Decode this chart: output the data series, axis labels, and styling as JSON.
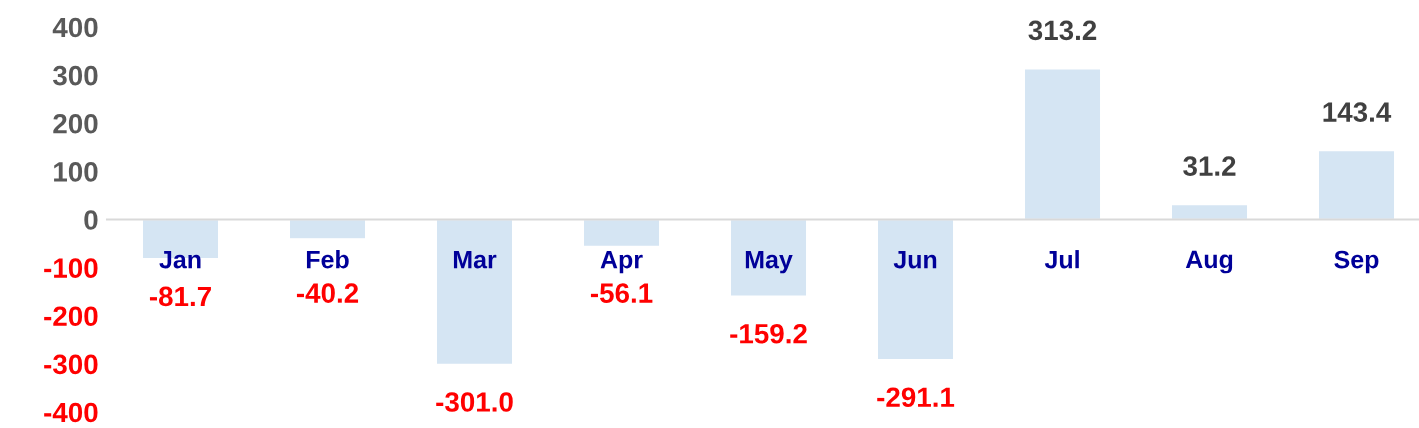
{
  "chart_data": {
    "type": "bar",
    "categories": [
      "Jan",
      "Feb",
      "Mar",
      "Apr",
      "May",
      "Jun",
      "Jul",
      "Aug",
      "Sep"
    ],
    "values": [
      -81.7,
      -40.2,
      -301.0,
      -56.1,
      -159.2,
      -291.1,
      313.2,
      31.2,
      143.4
    ],
    "value_labels": [
      "-81.7",
      "-40.2",
      "-301.0",
      "-56.1",
      "-159.2",
      "-291.1",
      "313.2",
      "31.2",
      "143.4"
    ],
    "color": "#d5e5f3",
    "ylim": [
      -400,
      400
    ],
    "yticks": [
      -400,
      -300,
      -200,
      -100,
      0,
      100,
      200,
      300,
      400
    ]
  }
}
